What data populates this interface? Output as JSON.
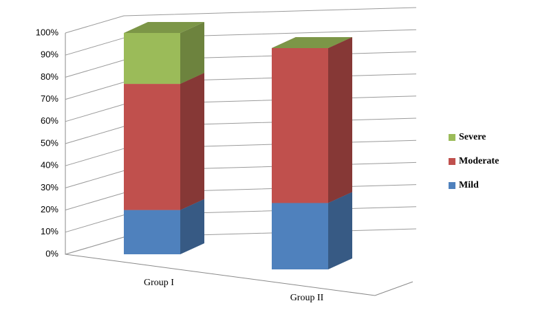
{
  "chart_data": {
    "type": "bar3d_stacked",
    "categories": [
      "Group I",
      "Group II"
    ],
    "series": [
      {
        "name": "Mild",
        "color": "#4f81bd",
        "values": [
          20,
          30
        ]
      },
      {
        "name": "Moderate",
        "color": "#c0504d",
        "values": [
          57,
          70
        ]
      },
      {
        "name": "Severe",
        "color": "#9bbb59",
        "values": [
          23,
          0
        ]
      }
    ],
    "ylim": [
      0,
      100
    ],
    "yticks": [
      {
        "value": 0,
        "label": "0%"
      },
      {
        "value": 10,
        "label": "10%"
      },
      {
        "value": 20,
        "label": "20%"
      },
      {
        "value": 30,
        "label": "30%"
      },
      {
        "value": 40,
        "label": "40%"
      },
      {
        "value": 50,
        "label": "50%"
      },
      {
        "value": 60,
        "label": "60%"
      },
      {
        "value": 70,
        "label": "70%"
      },
      {
        "value": 80,
        "label": "80%"
      },
      {
        "value": 90,
        "label": "90%"
      },
      {
        "value": 100,
        "label": "100%"
      }
    ],
    "grid": true,
    "legend": "right"
  }
}
